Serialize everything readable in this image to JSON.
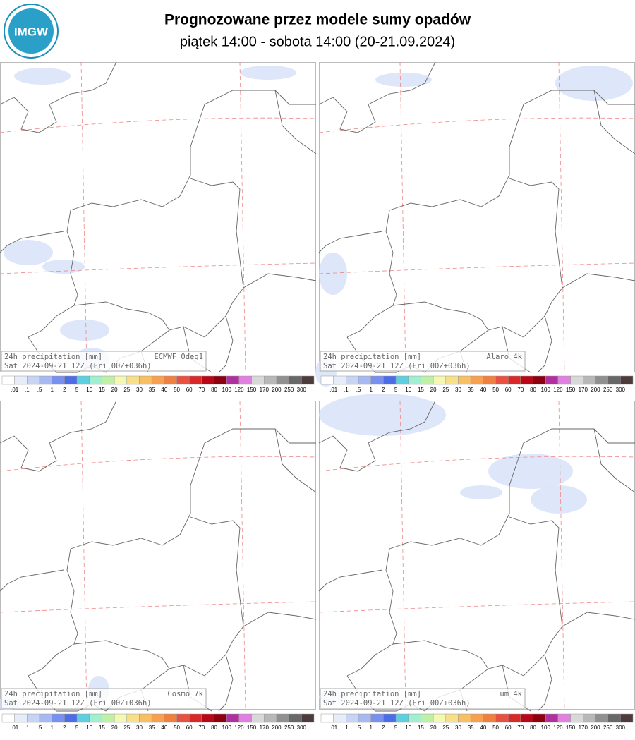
{
  "header": {
    "logo": "IMGW",
    "title": "Prognozowane przez modele sumy opadów",
    "subtitle": "piątek 14:00 - sobota 14:00 (20-21.09.2024)"
  },
  "panels": [
    {
      "label": "24h precipitation [mm]",
      "model": "ECMWF 0deg1",
      "valid": "Sat 2024-09-21 12Z (Fri 00Z+036h)"
    },
    {
      "label": "24h precipitation [mm]",
      "model": "Alaro 4k",
      "valid": "Sat 2024-09-21 12Z (Fri 00Z+036h)"
    },
    {
      "label": "24h precipitation [mm]",
      "model": "Cosmo 7k",
      "valid": "Sat 2024-09-21 12Z (Fri 00Z+036h)"
    },
    {
      "label": "24h precipitation [mm]",
      "model": "um 4k",
      "valid": "Sat 2024-09-21 12Z (Fri 00Z+036h)"
    }
  ],
  "legend": {
    "labels": [
      ".01",
      ".1",
      ".5",
      "1",
      "2",
      "5",
      "10",
      "15",
      "20",
      "25",
      "30",
      "35",
      "40",
      "50",
      "60",
      "70",
      "80",
      "100",
      "120",
      "150",
      "170",
      "200",
      "250",
      "300"
    ],
    "colors": [
      "#ffffff",
      "#e6ecf8",
      "#c8d4f4",
      "#a8b8f0",
      "#7890f0",
      "#4c6ce8",
      "#5cd0e0",
      "#a0f0d0",
      "#c0f0a8",
      "#f4f8b0",
      "#f8e088",
      "#f8c060",
      "#f8a050",
      "#f08040",
      "#e85040",
      "#d82828",
      "#b80818",
      "#8c0010",
      "#b030a0",
      "#e080e0",
      "#d8d8d8",
      "#b8b8b8",
      "#909090",
      "#686868",
      "#4c3c3c"
    ]
  }
}
